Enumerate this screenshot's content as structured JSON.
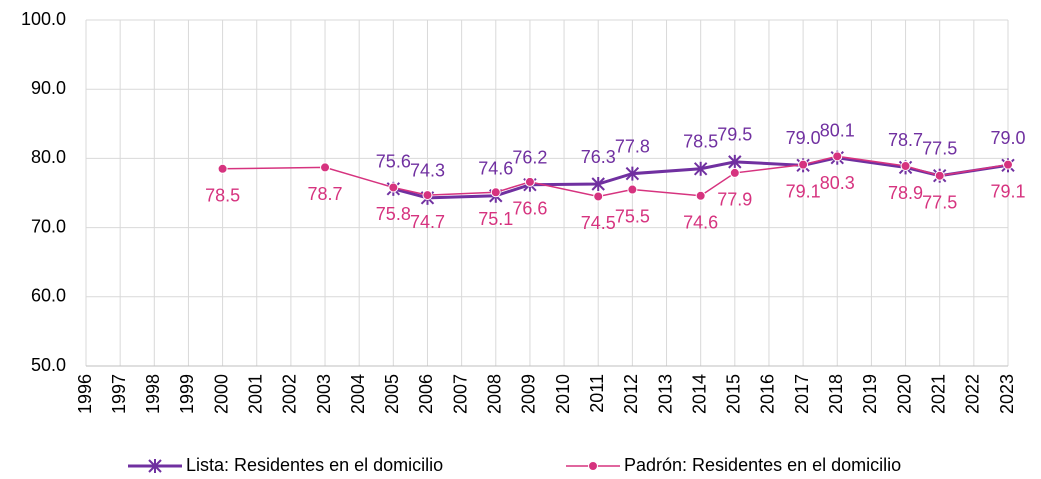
{
  "chart_data": {
    "type": "line",
    "xlim": [
      1996,
      2023
    ],
    "xticks": [
      1996,
      1997,
      1998,
      1999,
      2000,
      2001,
      2002,
      2003,
      2004,
      2005,
      2006,
      2007,
      2008,
      2009,
      2010,
      2011,
      2012,
      2013,
      2014,
      2015,
      2016,
      2017,
      2018,
      2019,
      2020,
      2021,
      2022,
      2023
    ],
    "ylim": [
      50,
      100
    ],
    "yticks": [
      {
        "value": 50,
        "label": "50.0"
      },
      {
        "value": 60,
        "label": "60.0"
      },
      {
        "value": 70,
        "label": "70.0"
      },
      {
        "value": 80,
        "label": "80.0"
      },
      {
        "value": 90,
        "label": "90.0"
      },
      {
        "value": 100,
        "label": "100.0"
      }
    ],
    "grid": true,
    "legend": "bottom",
    "series": [
      {
        "name": "Lista: Residentes en el domicilio",
        "color": "#7030a0",
        "marker": "star",
        "x": [
          2005,
          2006,
          2008,
          2009,
          2011,
          2012,
          2014,
          2015,
          2017,
          2018,
          2020,
          2021,
          2023
        ],
        "values": [
          75.6,
          74.3,
          74.6,
          76.2,
          76.3,
          77.8,
          78.5,
          79.5,
          79.0,
          80.1,
          78.7,
          77.5,
          79.0
        ],
        "value_labels": [
          "75.6",
          "74.3",
          "74.6",
          "76.2",
          "76.3",
          "77.8",
          "78.5",
          "79.5",
          "79.0",
          "80.1",
          "78.7",
          "77.5",
          "79.0"
        ]
      },
      {
        "name": "Padrón: Residentes en el domicilio",
        "color": "#d6337f",
        "marker": "circle",
        "x": [
          2000,
          2003,
          2005,
          2006,
          2008,
          2009,
          2011,
          2012,
          2014,
          2015,
          2017,
          2018,
          2020,
          2021,
          2023
        ],
        "values": [
          78.5,
          78.7,
          75.8,
          74.7,
          75.1,
          76.6,
          74.5,
          75.5,
          74.6,
          77.9,
          79.1,
          80.3,
          78.9,
          77.5,
          79.1
        ],
        "value_labels": [
          "78.5",
          "78.7",
          "75.8",
          "74.7",
          "75.1",
          "76.6",
          "74.5",
          "75.5",
          "74.6",
          "77.9",
          "79.1",
          "80.3",
          "78.9",
          "77.5",
          "79.1"
        ]
      }
    ]
  }
}
